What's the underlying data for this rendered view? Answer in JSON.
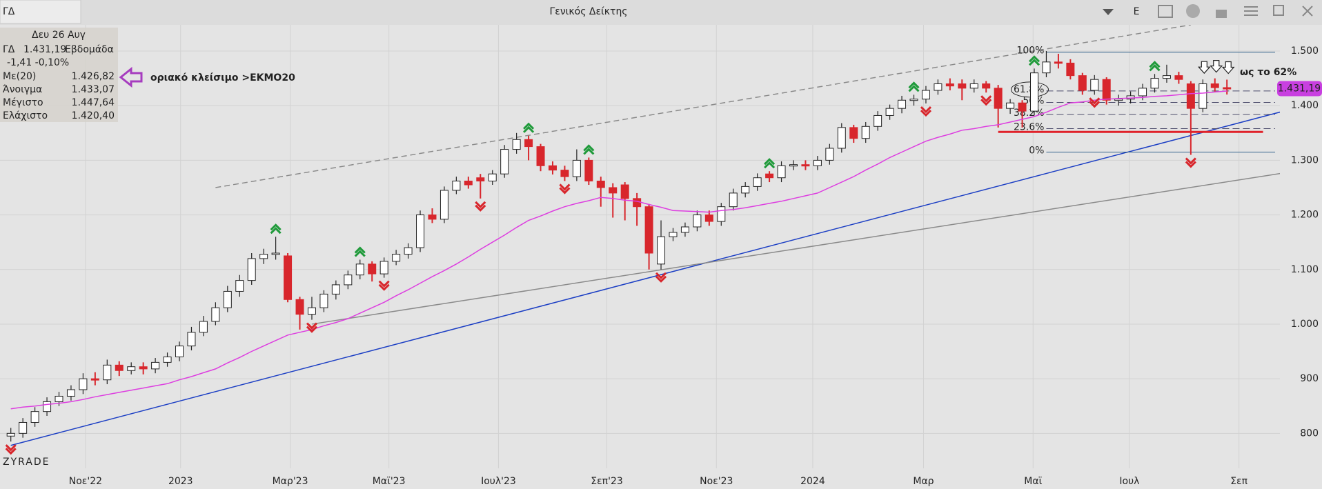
{
  "header": {
    "symbol": "ΓΔ",
    "title": "Γενικός Δείκτης",
    "button": "E"
  },
  "info": {
    "date": "Δευ 26 Αυγ",
    "symbol": "ΓΔ",
    "price": "1.431,19",
    "period": "Εβδομάδα",
    "change": "-1,41 -0,10%",
    "rows": [
      {
        "label": "Με(20)",
        "value": "1.426,82"
      },
      {
        "label": "Άνοιγμα",
        "value": "1.433,07"
      },
      {
        "label": "Μέγιστο",
        "value": "1.447,64"
      },
      {
        "label": "Ελάχιστο",
        "value": "1.420,40"
      }
    ]
  },
  "watermark": "ZYRADE",
  "chart_data": {
    "type": "candlestick",
    "open": [
      795,
      800,
      820,
      840,
      858,
      868,
      880,
      900,
      898,
      925,
      915,
      922,
      918,
      930,
      940,
      960,
      985,
      1005,
      1030,
      1060,
      1080,
      1120,
      1128,
      1125,
      1045,
      1018,
      1030,
      1055,
      1072,
      1090,
      1110,
      1092,
      1115,
      1128,
      1140,
      1200,
      1192,
      1245,
      1262,
      1268,
      1262,
      1275,
      1320,
      1338,
      1325,
      1290,
      1282,
      1270,
      1300,
      1262,
      1250,
      1255,
      1230,
      1215,
      1110,
      1160,
      1168,
      1178,
      1200,
      1188,
      1215,
      1240,
      1252,
      1275,
      1268,
      1290,
      1292,
      1290,
      1300,
      1322,
      1360,
      1340,
      1362,
      1382,
      1395,
      1410,
      1412,
      1428,
      1440,
      1440,
      1432,
      1440,
      1432,
      1395,
      1405,
      1390,
      1460,
      1480,
      1478,
      1455,
      1428,
      1448,
      1410,
      1412,
      1418,
      1432,
      1450,
      1455,
      1440,
      1395,
      1440,
      1433.07
    ],
    "high": [
      810,
      828,
      848,
      866,
      876,
      888,
      910,
      912,
      935,
      932,
      930,
      930,
      938,
      948,
      968,
      995,
      1015,
      1040,
      1070,
      1090,
      1130,
      1138,
      1160,
      1130,
      1050,
      1050,
      1062,
      1080,
      1098,
      1118,
      1115,
      1122,
      1136,
      1148,
      1208,
      1212,
      1252,
      1270,
      1270,
      1275,
      1282,
      1328,
      1350,
      1345,
      1330,
      1298,
      1290,
      1320,
      1305,
      1270,
      1258,
      1260,
      1240,
      1220,
      1190,
      1176,
      1186,
      1208,
      1208,
      1222,
      1248,
      1260,
      1276,
      1280,
      1298,
      1300,
      1300,
      1308,
      1330,
      1368,
      1365,
      1370,
      1390,
      1402,
      1418,
      1420,
      1436,
      1448,
      1450,
      1448,
      1448,
      1445,
      1438,
      1412,
      1410,
      1468,
      1500,
      1495,
      1485,
      1460,
      1456,
      1452,
      1420,
      1426,
      1440,
      1458,
      1475,
      1462,
      1445,
      1448,
      1450,
      1447.64
    ],
    "low": [
      785,
      792,
      812,
      832,
      850,
      860,
      872,
      888,
      890,
      905,
      908,
      908,
      910,
      922,
      932,
      952,
      978,
      998,
      1022,
      1050,
      1072,
      1110,
      1118,
      1040,
      990,
      1008,
      1022,
      1045,
      1064,
      1082,
      1078,
      1085,
      1108,
      1120,
      1132,
      1185,
      1185,
      1238,
      1248,
      1230,
      1255,
      1268,
      1312,
      1300,
      1280,
      1274,
      1262,
      1262,
      1255,
      1215,
      1195,
      1190,
      1180,
      1100,
      1100,
      1152,
      1160,
      1170,
      1180,
      1180,
      1208,
      1232,
      1244,
      1260,
      1260,
      1282,
      1282,
      1282,
      1292,
      1314,
      1332,
      1332,
      1354,
      1374,
      1386,
      1400,
      1404,
      1420,
      1428,
      1410,
      1424,
      1424,
      1360,
      1385,
      1360,
      1382,
      1452,
      1468,
      1448,
      1420,
      1420,
      1402,
      1400,
      1404,
      1410,
      1424,
      1442,
      1440,
      1310,
      1388,
      1425,
      1420.4
    ],
    "close": [
      800,
      820,
      840,
      858,
      868,
      880,
      900,
      898,
      925,
      915,
      922,
      918,
      930,
      940,
      960,
      985,
      1005,
      1030,
      1060,
      1080,
      1120,
      1128,
      1130,
      1045,
      1018,
      1030,
      1055,
      1072,
      1090,
      1110,
      1092,
      1115,
      1128,
      1140,
      1200,
      1192,
      1245,
      1262,
      1255,
      1262,
      1275,
      1320,
      1338,
      1325,
      1290,
      1282,
      1270,
      1300,
      1262,
      1250,
      1240,
      1230,
      1215,
      1130,
      1160,
      1168,
      1178,
      1200,
      1188,
      1215,
      1240,
      1252,
      1268,
      1268,
      1290,
      1292,
      1290,
      1300,
      1322,
      1360,
      1340,
      1362,
      1382,
      1395,
      1410,
      1412,
      1428,
      1440,
      1436,
      1432,
      1440,
      1432,
      1395,
      1405,
      1390,
      1460,
      1480,
      1478,
      1455,
      1428,
      1448,
      1410,
      1412,
      1418,
      1432,
      1450,
      1455,
      1448,
      1395,
      1440,
      1433,
      1431.19
    ],
    "ma": {
      "name": "Με(20)",
      "color": "#dd3ee0",
      "values": [
        845,
        848,
        850,
        853,
        855,
        858,
        862,
        867,
        871,
        875,
        879,
        883,
        887,
        891,
        898,
        904,
        911,
        918,
        929,
        939,
        950,
        960,
        970,
        980,
        985,
        990,
        997,
        1003,
        1010,
        1020,
        1030,
        1040,
        1052,
        1063,
        1075,
        1087,
        1098,
        1110,
        1123,
        1137,
        1150,
        1163,
        1177,
        1190,
        1198,
        1207,
        1215,
        1221,
        1226,
        1232,
        1230,
        1227,
        1225,
        1219,
        1214,
        1208,
        1207,
        1206,
        1205,
        1208,
        1210,
        1213,
        1217,
        1221,
        1225,
        1230,
        1235,
        1240,
        1250,
        1260,
        1270,
        1282,
        1293,
        1305,
        1315,
        1325,
        1335,
        1342,
        1348,
        1355,
        1358,
        1362,
        1365,
        1370,
        1375,
        1380,
        1388,
        1397,
        1405,
        1407,
        1410,
        1412,
        1413,
        1414,
        1415,
        1417,
        1418,
        1420,
        1422,
        1423,
        1425,
        1426.82
      ]
    },
    "up_color": "#ffffff",
    "down_color": "#d8262c",
    "trendlines": [
      {
        "color": "#1c3fc4",
        "dash": false,
        "from": [
          0,
          778
        ],
        "to": [
          109,
          1409
        ]
      },
      {
        "color": "#8a8a8a",
        "dash": true,
        "from": [
          17,
          1250
        ],
        "to": [
          98,
          1548
        ]
      },
      {
        "color": "#8a8a8a",
        "dash": false,
        "from": [
          25,
          1000
        ],
        "to": [
          109,
          1288
        ]
      },
      {
        "color": "#e0222a",
        "dash": false,
        "from": [
          82,
          1352
        ],
        "to": [
          104,
          1352
        ]
      }
    ],
    "fibonacci": {
      "start": 86,
      "end": 105,
      "levels": [
        {
          "label": "100%",
          "value": 1498
        },
        {
          "label": "61.8%",
          "value": 1427
        },
        {
          "label": "50%",
          "value": 1406
        },
        {
          "label": "38.2%",
          "value": 1384
        },
        {
          "label": "23.6%",
          "value": 1358
        },
        {
          "label": "0%",
          "value": 1315
        }
      ]
    },
    "up_signals": [
      22,
      29,
      43,
      48,
      63,
      75,
      85,
      95
    ],
    "down_signals": [
      0,
      25,
      31,
      39,
      46,
      54,
      76,
      81,
      90,
      98
    ],
    "annotations": [
      "οριακό κλείσιμο >ΕΚΜΟ20",
      "ως το 62%"
    ],
    "xlim": [
      -0.9,
      105.4
    ],
    "ylim": [
      736,
      1548
    ],
    "yticks": [
      800,
      900,
      {
        "value": 1000,
        "label": "1.000"
      },
      {
        "value": 1100,
        "label": "1.100"
      },
      {
        "value": 1200,
        "label": "1.200"
      },
      {
        "value": 1300,
        "label": "1.300"
      },
      {
        "value": 1400,
        "label": "1.400"
      },
      {
        "value": 1500,
        "label": "1.500"
      }
    ],
    "xticks": [
      {
        "value": 6.2,
        "label": "Νοε'22"
      },
      {
        "value": 14.1,
        "label": "2023"
      },
      {
        "value": 23.2,
        "label": "Μαρ'23"
      },
      {
        "value": 31.4,
        "label": "Μαϊ'23"
      },
      {
        "value": 40.5,
        "label": "Ιουλ'23"
      },
      {
        "value": 49.5,
        "label": "Σεπ'23"
      },
      {
        "value": 58.6,
        "label": "Νοε'23"
      },
      {
        "value": 66.6,
        "label": "2024"
      },
      {
        "value": 75.8,
        "label": "Μαρ"
      },
      {
        "value": 84.9,
        "label": "Μαϊ"
      },
      {
        "value": 92.9,
        "label": "Ιουλ"
      },
      {
        "value": 102,
        "label": "Σεπ"
      }
    ],
    "grid": true
  }
}
